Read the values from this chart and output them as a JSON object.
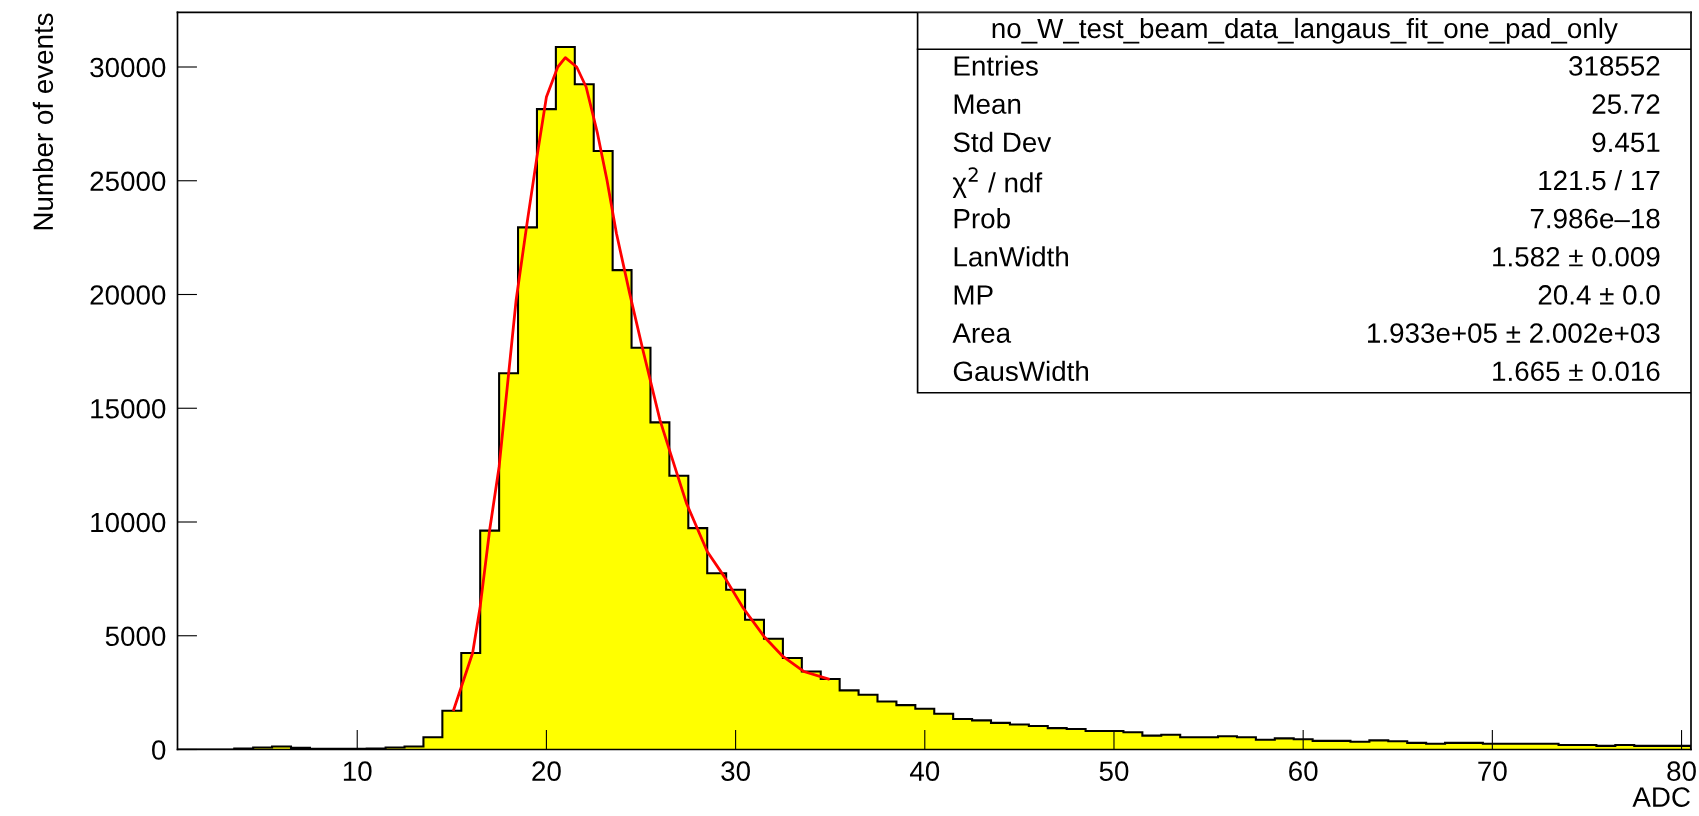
{
  "chart_data": {
    "type": "histogram",
    "xlabel": "ADC",
    "ylabel": "Number of events",
    "bins": [
      0.5,
      1.5,
      2.5,
      3.5,
      4.5,
      5.5,
      6.5,
      7.5,
      8.5,
      9.5,
      10.5,
      11.5,
      12.5,
      13.5,
      14.5,
      15.5,
      16.5,
      17.5,
      18.5,
      19.5,
      20.5,
      21.5,
      22.5,
      23.5,
      24.5,
      25.5,
      26.5,
      27.5,
      28.5,
      29.5,
      30.5,
      31.5,
      32.5,
      33.5,
      34.5,
      35.5,
      36.5,
      37.5,
      38.5,
      39.5,
      40.5,
      41.5,
      42.5,
      43.5,
      44.5,
      45.5,
      46.5,
      47.5,
      48.5,
      49.5,
      50.5,
      51.5,
      52.5,
      53.5,
      54.5,
      55.5,
      56.5,
      57.5,
      58.5,
      59.5,
      60.5,
      61.5,
      62.5,
      63.5,
      64.5,
      65.5,
      66.5,
      67.5,
      68.5,
      69.5,
      70.5,
      71.5,
      72.5,
      73.5,
      74.5,
      75.5,
      76.5,
      77.5,
      78.5,
      79.5,
      80.5
    ],
    "series": [
      {
        "color": "#ffff00",
        "values": [
          0,
          0,
          0,
          40,
          90,
          130,
          70,
          30,
          30,
          30,
          40,
          90,
          130,
          540,
          1700,
          4240,
          9620,
          16540,
          22950,
          28150,
          30880,
          29240,
          26310,
          21070,
          17660,
          14380,
          12030,
          9730,
          7750,
          7020,
          5700,
          4870,
          4020,
          3430,
          3100,
          2600,
          2410,
          2110,
          1950,
          1790,
          1570,
          1340,
          1280,
          1170,
          1100,
          1030,
          940,
          900,
          810,
          810,
          760,
          610,
          650,
          540,
          540,
          580,
          540,
          430,
          490,
          450,
          380,
          380,
          340,
          400,
          360,
          290,
          250,
          290,
          290,
          250,
          250,
          250,
          250,
          200,
          200,
          160,
          200,
          160,
          160,
          160
        ]
      },
      {
        "type": "line",
        "color": "#ff0000",
        "x": [
          15.1,
          16.1,
          16.5,
          17.0,
          17.5,
          18.4,
          19.0,
          19.5,
          20.0,
          20.6,
          21.0,
          21.6,
          22.1,
          22.7,
          23.2,
          23.7,
          24.4,
          25.1,
          26.0,
          26.5,
          27.4,
          28.5,
          29.4,
          30.4,
          31.5,
          32.5,
          33.6,
          34.9
        ],
        "values": [
          1750,
          4240,
          6290,
          9650,
          12430,
          19760,
          23270,
          26050,
          28680,
          30000,
          30410,
          30000,
          29120,
          27080,
          25030,
          22690,
          20050,
          17560,
          14490,
          13170,
          10830,
          8700,
          7600,
          6220,
          4970,
          4090,
          3430,
          3100
        ]
      }
    ],
    "xlim": [
      0.5,
      80.5
    ],
    "ylim": [
      0,
      32400
    ],
    "xticks": [
      10,
      20,
      30,
      40,
      50,
      60,
      70,
      80
    ],
    "yticks": [
      0,
      5000,
      10000,
      15000,
      20000,
      25000,
      30000
    ],
    "grid": false,
    "annotations": [
      "no_W_test_beam_data_langaus_fit_one_pad_only",
      "Entries",
      "318552",
      "Mean",
      "25.72",
      "Std Dev",
      "9.451",
      "χ$^{2}$ / ndf",
      "121.5 / 17",
      "Prob",
      "7.986e–18",
      "LanWidth",
      "1.582 ± 0.009",
      "MP",
      "20.4 ± 0.0",
      "Area",
      "1.933e+05 ± 2.002e+03",
      "GausWidth",
      "1.665 ± 0.016"
    ]
  }
}
